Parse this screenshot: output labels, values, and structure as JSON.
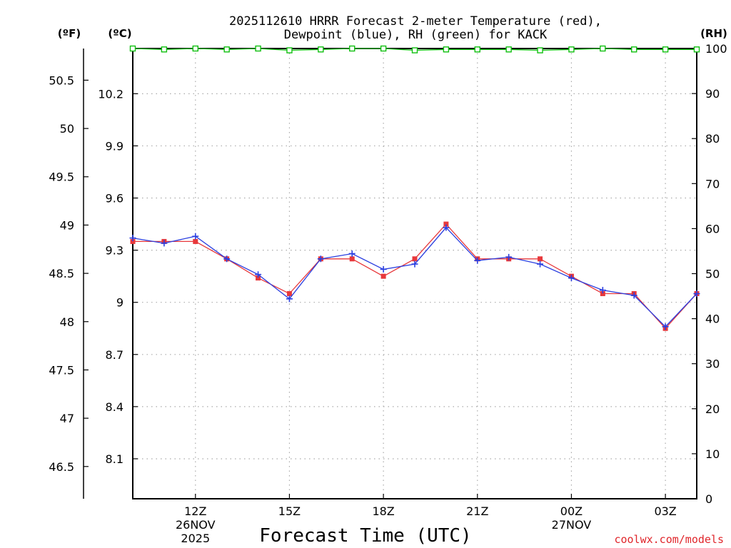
{
  "chart_data": {
    "type": "line",
    "title_line1": "2025112610 HRRR Forecast 2-meter Temperature (red),",
    "title_line2": "Dewpoint (blue), RH (green) for KACK",
    "units": {
      "fahrenheit": "(ºF)",
      "celsius": "(ºC)",
      "rh": "(RH)"
    },
    "xlabel": "Forecast Time (UTC)",
    "credit": "coolwx.com/models",
    "x_hours": [
      10,
      11,
      12,
      13,
      14,
      15,
      16,
      17,
      18,
      19,
      20,
      21,
      22,
      23,
      24,
      25,
      26,
      27,
      28
    ],
    "x_ticks": [
      {
        "hour": 12,
        "label": "12Z",
        "date": "26NOV",
        "year": "2025"
      },
      {
        "hour": 15,
        "label": "15Z",
        "date": "",
        "year": ""
      },
      {
        "hour": 18,
        "label": "18Z",
        "date": "",
        "year": ""
      },
      {
        "hour": 21,
        "label": "21Z",
        "date": "",
        "year": ""
      },
      {
        "hour": 24,
        "label": "00Z",
        "date": "27NOV",
        "year": ""
      },
      {
        "hour": 27,
        "label": "03Z",
        "date": "",
        "year": ""
      }
    ],
    "celsius_ticks": [
      "8.1",
      "8.4",
      "8.7",
      "9",
      "9.3",
      "9.6",
      "9.9",
      "10.2"
    ],
    "celsius_range": [
      7.87,
      10.46
    ],
    "fahrenheit_ticks": [
      "46.5",
      "47",
      "47.5",
      "48",
      "48.5",
      "49",
      "49.5",
      "50",
      "50.5"
    ],
    "rh_ticks": [
      "0",
      "10",
      "20",
      "30",
      "40",
      "50",
      "60",
      "70",
      "80",
      "90",
      "100"
    ],
    "rh_range": [
      0,
      100
    ],
    "series": [
      {
        "name": "Temperature",
        "color": "#e8383b",
        "marker": "square",
        "values_c": [
          9.35,
          9.35,
          9.35,
          9.25,
          9.14,
          9.05,
          9.25,
          9.25,
          9.15,
          9.25,
          9.45,
          9.25,
          9.25,
          9.25,
          9.15,
          9.05,
          9.05,
          8.85,
          9.05
        ]
      },
      {
        "name": "Dewpoint",
        "color": "#2b3fe0",
        "marker": "plus",
        "values_c": [
          9.37,
          9.34,
          9.38,
          9.25,
          9.16,
          9.02,
          9.25,
          9.28,
          9.19,
          9.22,
          9.43,
          9.24,
          9.26,
          9.22,
          9.14,
          9.07,
          9.04,
          8.86,
          9.05
        ]
      },
      {
        "name": "RH",
        "color": "#10c010",
        "marker": "open-square",
        "values": [
          100,
          99.8,
          100,
          99.8,
          100,
          99.6,
          99.8,
          100,
          100,
          99.6,
          99.8,
          99.8,
          99.8,
          99.6,
          99.8,
          100,
          99.8,
          99.8,
          99.8
        ]
      }
    ]
  }
}
